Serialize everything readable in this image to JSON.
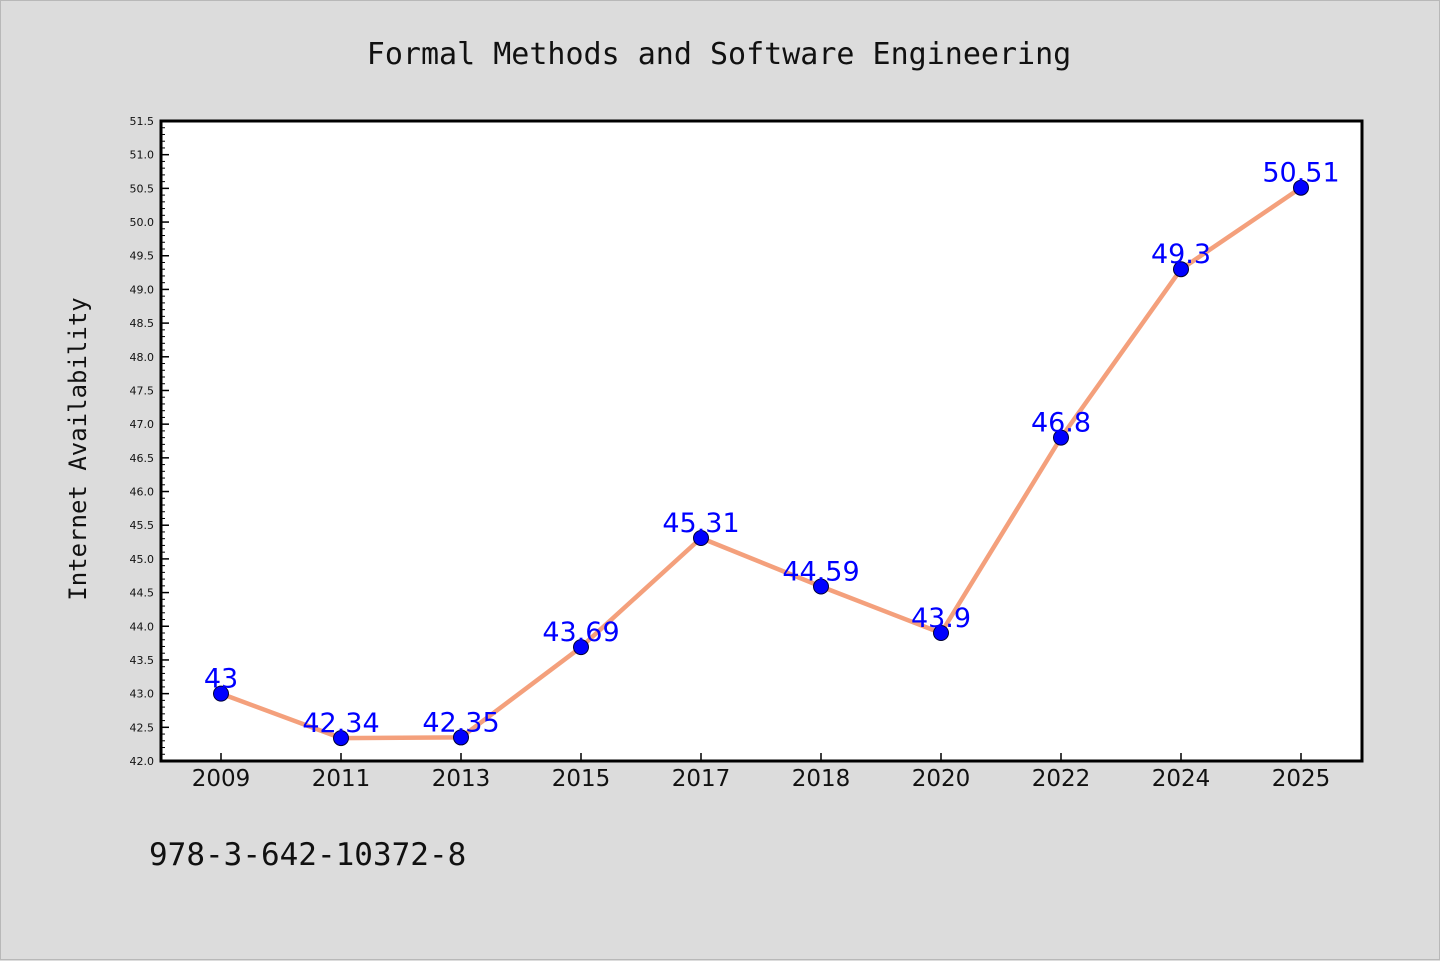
{
  "chart_data": {
    "type": "line",
    "title": "Formal Methods and Software Engineering",
    "xlabel": "",
    "ylabel": "Internet Availability",
    "categories": [
      "2009",
      "2011",
      "2013",
      "2015",
      "2017",
      "2018",
      "2020",
      "2022",
      "2024",
      "2025"
    ],
    "series": [
      {
        "values": [
          43.0,
          42.34,
          42.35,
          43.69,
          45.31,
          44.59,
          43.9,
          46.8,
          49.3,
          50.51
        ],
        "data_labels": [
          "43",
          "42.34",
          "42.35",
          "43.69",
          "45.31",
          "44.59",
          "43.9",
          "46.8",
          "49.3",
          "50.51"
        ]
      }
    ],
    "ylim": [
      42.0,
      51.5
    ],
    "yticks": [
      "42.0",
      "42.5",
      "43.0",
      "43.5",
      "44.0",
      "44.5",
      "45.0",
      "45.5",
      "46.0",
      "46.5",
      "47.0",
      "47.5",
      "48.0",
      "48.5",
      "49.0",
      "49.5",
      "50.0",
      "50.5",
      "51.0",
      "51.5"
    ],
    "grid": false,
    "legend": "none",
    "line_color": "#f4a07c",
    "marker_color": "#0000ff"
  },
  "footer_note": "978-3-642-10372-8",
  "colors": {
    "background": "#dcdcdc",
    "plot_background": "#ffffff",
    "axis": "#000000"
  }
}
